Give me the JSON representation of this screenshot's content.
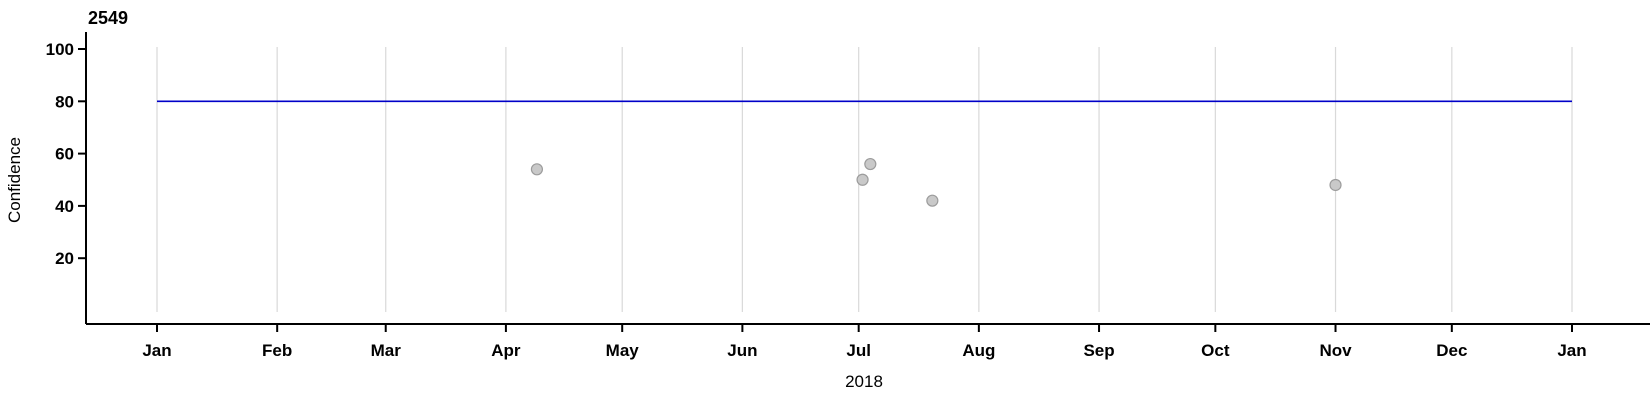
{
  "chart_data": {
    "type": "scatter",
    "title": "2549",
    "xlabel": "2018",
    "ylabel": "Confidence",
    "x_axis": {
      "tick_labels": [
        "Jan",
        "Feb",
        "Mar",
        "Apr",
        "May",
        "Jun",
        "Jul",
        "Aug",
        "Sep",
        "Oct",
        "Nov",
        "Dec",
        "Jan"
      ],
      "tick_days": [
        0,
        31,
        59,
        90,
        120,
        151,
        181,
        212,
        243,
        273,
        304,
        334,
        365
      ],
      "range_days": [
        0,
        365
      ],
      "grid": true
    },
    "y_axis": {
      "tick_values": [
        20,
        40,
        60,
        80,
        100
      ],
      "range": [
        0,
        105
      ],
      "grid": false
    },
    "reference_line": {
      "value": 80,
      "color": "#0000C8",
      "span_days": [
        0,
        365
      ]
    },
    "points": [
      {
        "date": "Apr 9",
        "day": 98,
        "value": 54
      },
      {
        "date": "Jul 2",
        "day": 182,
        "value": 50
      },
      {
        "date": "Jul 4",
        "day": 184,
        "value": 56
      },
      {
        "date": "Jul 20",
        "day": 200,
        "value": 42
      },
      {
        "date": "Nov 1",
        "day": 304,
        "value": 48
      }
    ],
    "style": {
      "point_fill": "#C9C9C9",
      "point_stroke": "#9C9C9C",
      "grid_color": "#D9D9D9",
      "axis_color": "#000000"
    },
    "legend": null
  }
}
